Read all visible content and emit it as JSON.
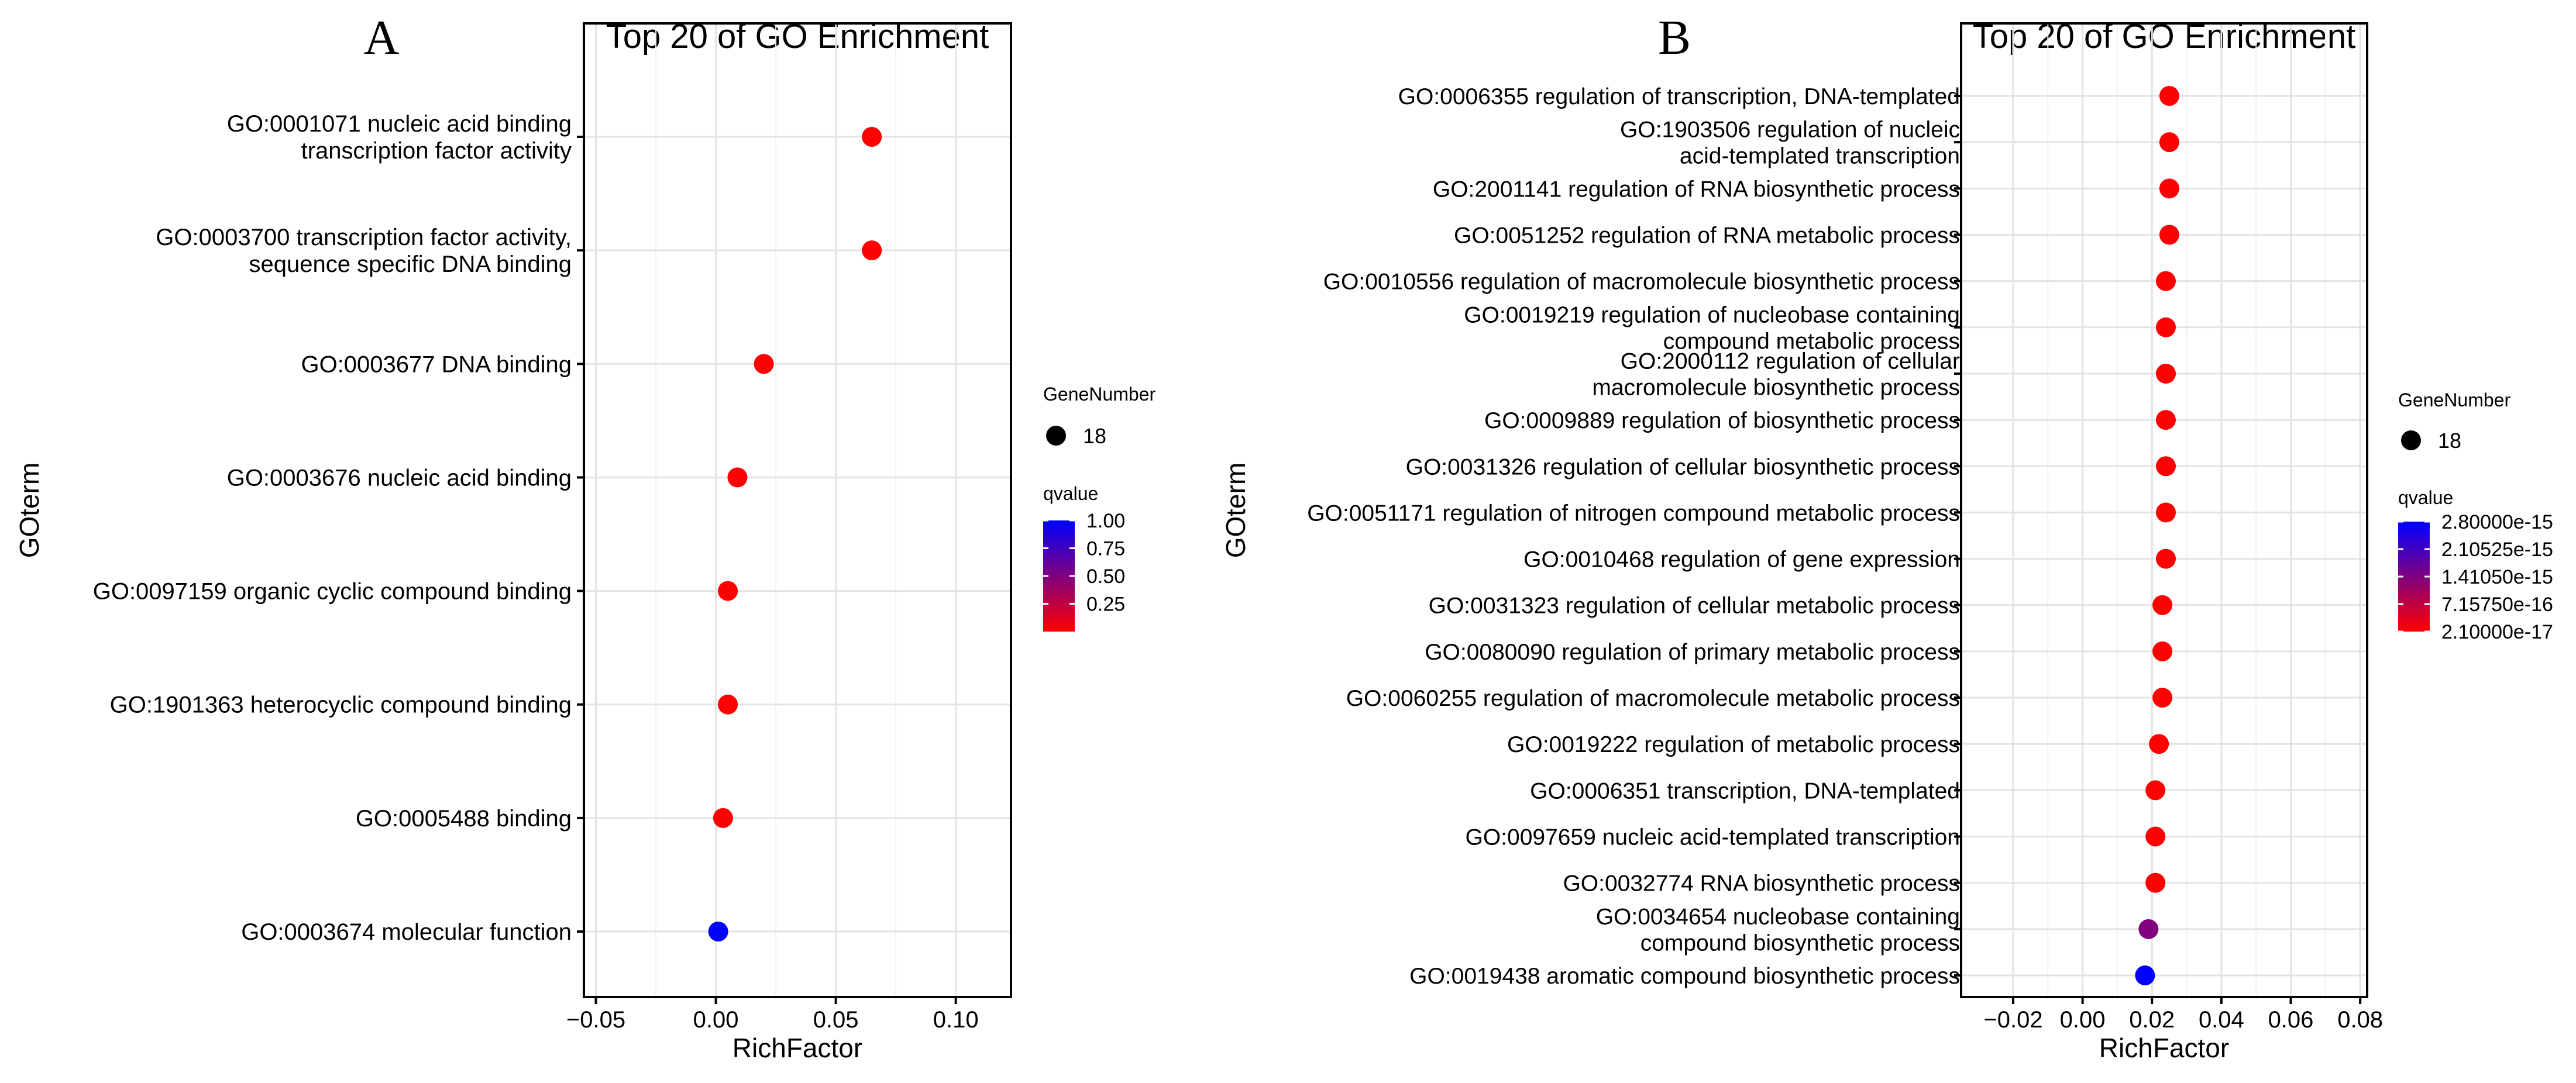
{
  "chart_data": [
    {
      "panel": "A",
      "type": "scatter",
      "title": "Top 20 of GO Enrichment",
      "xlabel": "RichFactor",
      "ylabel": "GOterm",
      "xlim": [
        -0.055,
        0.123
      ],
      "xticks": [
        -0.05,
        0.0,
        0.05,
        0.1
      ],
      "xtick_labels": [
        "−0.05",
        "0.00",
        "0.05",
        "0.10"
      ],
      "grid": true,
      "categories": [
        "GO:0001071 nucleic acid binding\ntranscription factor activity",
        "GO:0003700 transcription factor activity,\nsequence specific DNA binding",
        "GO:0003677 DNA binding",
        "GO:0003676 nucleic acid binding",
        "GO:0097159 organic cyclic compound binding",
        "GO:1901363 heterocyclic compound binding",
        "GO:0005488 binding",
        "GO:0003674 molecular  function"
      ],
      "points": [
        {
          "rich_factor": 0.065,
          "qvalue": 0.0
        },
        {
          "rich_factor": 0.065,
          "qvalue": 0.0
        },
        {
          "rich_factor": 0.02,
          "qvalue": 0.0
        },
        {
          "rich_factor": 0.009,
          "qvalue": 0.0
        },
        {
          "rich_factor": 0.005,
          "qvalue": 0.0
        },
        {
          "rich_factor": 0.005,
          "qvalue": 0.0
        },
        {
          "rich_factor": 0.003,
          "qvalue": 0.0
        },
        {
          "rich_factor": 0.001,
          "qvalue": 1.0
        }
      ],
      "legend_size": {
        "title": "GeneNumber",
        "label": "18"
      },
      "legend_color": {
        "title": "qvalue",
        "range": [
          0.0,
          1.0
        ],
        "breaks": [
          1.0,
          0.75,
          0.5,
          0.25
        ],
        "labels": [
          "1.00",
          "0.75",
          "0.50",
          "0.25"
        ],
        "low_color": "#ff0000",
        "high_color": "#0000ff"
      }
    },
    {
      "panel": "B",
      "type": "scatter",
      "title": "Top 20 of GO Enrichment",
      "xlabel": "RichFactor",
      "ylabel": "GOterm",
      "xlim": [
        -0.035,
        0.082
      ],
      "xticks": [
        -0.02,
        0.0,
        0.02,
        0.04,
        0.06,
        0.08
      ],
      "xtick_labels": [
        "−0.02",
        "0.00",
        "0.02",
        "0.04",
        "0.06",
        "0.08"
      ],
      "grid": true,
      "categories": [
        "GO:0006355 regulation of transcription, DNA-templated",
        "GO:1903506 regulation of nucleic\nacid-templated transcription",
        "GO:2001141 regulation of RNA biosynthetic process",
        "GO:0051252 regulation of RNA metabolic process",
        "GO:0010556 regulation of macromolecule biosynthetic process",
        "GO:0019219 regulation of nucleobase containing\ncompound metabolic process",
        "GO:2000112 regulation of cellular\nmacromolecule biosynthetic process",
        "GO:0009889 regulation of biosynthetic process",
        "GO:0031326 regulation of cellular biosynthetic process",
        "GO:0051171 regulation of nitrogen compound metabolic process",
        "GO:0010468 regulation of gene expression",
        "GO:0031323 regulation of cellular metabolic process",
        "GO:0080090 regulation of primary metabolic process",
        "GO:0060255 regulation of macromolecule metabolic process",
        "GO:0019222 regulation of metabolic process",
        "GO:0006351 transcription, DNA-templated",
        "GO:0097659 nucleic acid-templated transcription",
        "GO:0032774 RNA biosynthetic process",
        "GO:0034654 nucleobase containing\ncompound biosynthetic process",
        "GO:0019438 aromatic compound biosynthetic process"
      ],
      "points": [
        {
          "rich_factor": 0.025,
          "qvalue": 2.1e-17
        },
        {
          "rich_factor": 0.025,
          "qvalue": 2.1e-17
        },
        {
          "rich_factor": 0.025,
          "qvalue": 2.1e-17
        },
        {
          "rich_factor": 0.025,
          "qvalue": 2.1e-17
        },
        {
          "rich_factor": 0.024,
          "qvalue": 2.1e-17
        },
        {
          "rich_factor": 0.024,
          "qvalue": 2.1e-17
        },
        {
          "rich_factor": 0.024,
          "qvalue": 2.1e-17
        },
        {
          "rich_factor": 0.024,
          "qvalue": 2.1e-17
        },
        {
          "rich_factor": 0.024,
          "qvalue": 2.1e-17
        },
        {
          "rich_factor": 0.024,
          "qvalue": 2.1e-17
        },
        {
          "rich_factor": 0.024,
          "qvalue": 2.1e-17
        },
        {
          "rich_factor": 0.023,
          "qvalue": 2.1e-17
        },
        {
          "rich_factor": 0.023,
          "qvalue": 2.1e-17
        },
        {
          "rich_factor": 0.023,
          "qvalue": 2.1e-17
        },
        {
          "rich_factor": 0.022,
          "qvalue": 2.1e-17
        },
        {
          "rich_factor": 0.021,
          "qvalue": 2.1e-17
        },
        {
          "rich_factor": 0.021,
          "qvalue": 2.1e-17
        },
        {
          "rich_factor": 0.021,
          "qvalue": 2.1e-17
        },
        {
          "rich_factor": 0.019,
          "qvalue": 1.4e-15
        },
        {
          "rich_factor": 0.018,
          "qvalue": 2.8e-15
        }
      ],
      "legend_size": {
        "title": "GeneNumber",
        "label": "18"
      },
      "legend_color": {
        "title": "qvalue",
        "range": [
          2.1e-17,
          2.8e-15
        ],
        "breaks": [
          2.8e-15,
          2.10525e-15,
          1.4105e-15,
          7.1575e-16,
          2.1e-17
        ],
        "labels": [
          "2.80000e-15",
          "2.10525e-15",
          "1.41050e-15",
          "7.15750e-16",
          "2.10000e-17"
        ],
        "low_color": "#ff0000",
        "high_color": "#0000ff"
      }
    }
  ]
}
